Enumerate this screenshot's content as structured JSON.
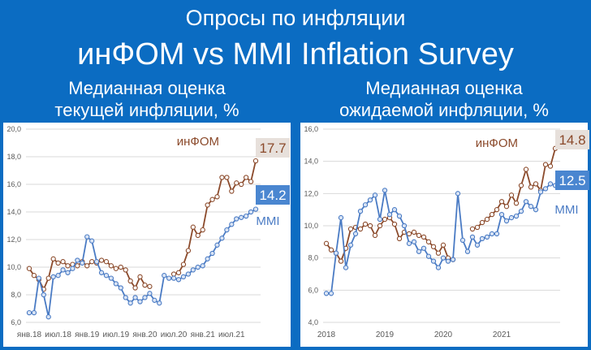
{
  "header": {
    "title1": "Опросы по инфляции",
    "title2": "инФОМ vs MMI Inflation Survey"
  },
  "colors": {
    "background": "#0b6cc2",
    "infom": "#8b4a2b",
    "mmi": "#4a7bc4",
    "mmi_fill": "#d9e4f5",
    "infom_fill": "#ffffff",
    "infom_badge": "#e7e0db",
    "mmi_badge": "#4a86d0"
  },
  "panels": {
    "left": {
      "title_line1": "Медианная оценка",
      "title_line2": "текущей инфляции, %"
    },
    "right": {
      "title_line1": "Медианная оценка",
      "title_line2": "ожидаемой инфляции, %"
    }
  },
  "chart_data": [
    {
      "type": "line",
      "title": "Медианная оценка текущей инфляции, %",
      "ylim": [
        6.0,
        20.0
      ],
      "yticks": [
        "6,0",
        "8,0",
        "10,0",
        "12,0",
        "14,0",
        "16,0",
        "18,0",
        "20,0"
      ],
      "xlim": [
        0,
        47
      ],
      "xticks": [
        {
          "x": 0,
          "label": "янв.18"
        },
        {
          "x": 6,
          "label": "июл.18"
        },
        {
          "x": 12,
          "label": "янв.19"
        },
        {
          "x": 18,
          "label": "июл.19"
        },
        {
          "x": 24,
          "label": "янв.20"
        },
        {
          "x": 30,
          "label": "июл.20"
        },
        {
          "x": 36,
          "label": "янв.21"
        },
        {
          "x": 42,
          "label": "июл.21"
        }
      ],
      "series": [
        {
          "name": "инФОМ",
          "last_label": "17.7",
          "segments": [
            {
              "x": [
                0,
                1,
                2,
                3,
                4,
                5,
                6,
                7,
                8,
                9,
                10,
                11,
                12,
                13,
                14,
                15,
                16,
                17,
                18,
                19,
                20,
                21,
                22,
                23,
                24,
                25
              ],
              "values": [
                9.9,
                9.4,
                9.1,
                8.4,
                9.2,
                10.6,
                10.3,
                10.4,
                10.1,
                10.2,
                10.1,
                10.4,
                10.1,
                10.4,
                10.3,
                10.5,
                10.4,
                10.1,
                9.9,
                10.0,
                9.8,
                9.0,
                8.5,
                9.3,
                8.7,
                8.6
              ]
            },
            {
              "x": [
                30,
                31,
                32,
                33,
                34,
                35,
                36,
                37,
                38,
                39,
                40,
                41,
                42,
                43,
                44,
                45,
                46,
                47
              ],
              "values": [
                9.5,
                9.6,
                10.2,
                11.2,
                12.9,
                12.3,
                12.7,
                14.5,
                14.9,
                15.1,
                16.5,
                16.5,
                15.5,
                16.1,
                16.0,
                16.5,
                16.2,
                17.7
              ]
            }
          ]
        },
        {
          "name": "MMI",
          "last_label": "14.2",
          "segments": [
            {
              "x": [
                0,
                1,
                2,
                3,
                4,
                5,
                6,
                7,
                8,
                9,
                10,
                11,
                12,
                13,
                14,
                15,
                16,
                17,
                18,
                19,
                20,
                21,
                22,
                23,
                24,
                25,
                26,
                27,
                28,
                29,
                30,
                31,
                32,
                33,
                34,
                35,
                36,
                37,
                38,
                39,
                40,
                41,
                42,
                43,
                44,
                45,
                46,
                47
              ],
              "values": [
                6.7,
                6.7,
                9.2,
                8.0,
                6.4,
                9.3,
                9.4,
                9.8,
                9.6,
                9.9,
                10.5,
                10.3,
                12.2,
                11.9,
                10.4,
                9.6,
                9.4,
                9.2,
                8.8,
                8.5,
                7.8,
                7.4,
                7.8,
                7.5,
                7.8,
                8.1,
                7.6,
                7.4,
                9.4,
                9.2,
                9.2,
                9.1,
                9.3,
                9.5,
                9.8,
                10.0,
                10.1,
                10.6,
                11.0,
                11.6,
                12.1,
                12.7,
                13.1,
                13.5,
                13.6,
                13.7,
                14.0,
                14.2
              ]
            }
          ]
        }
      ]
    },
    {
      "type": "line",
      "title": "Медианная оценка ожидаемой инфляции, %",
      "ylim": [
        4.0,
        16.0
      ],
      "yticks": [
        "4,0",
        "6,0",
        "8,0",
        "10,0",
        "12,0",
        "14,0",
        "16,0"
      ],
      "xlim": [
        0,
        47
      ],
      "xticks": [
        {
          "x": 0,
          "label": "2018"
        },
        {
          "x": 12,
          "label": "2019"
        },
        {
          "x": 24,
          "label": "2020"
        },
        {
          "x": 36,
          "label": "2021"
        }
      ],
      "series": [
        {
          "name": "инФОМ",
          "last_label": "14.8",
          "segments": [
            {
              "x": [
                0,
                1,
                2,
                3,
                4,
                5,
                6,
                7,
                8,
                9,
                10,
                11,
                12,
                13,
                14,
                15,
                16,
                17,
                18,
                19,
                20,
                21,
                22,
                23,
                24,
                25,
                26
              ],
              "values": [
                8.9,
                8.5,
                8.3,
                7.8,
                8.6,
                9.8,
                9.9,
                9.8,
                10.1,
                10.0,
                9.4,
                10.0,
                10.4,
                10.5,
                10.1,
                9.2,
                9.6,
                9.5,
                9.6,
                9.4,
                9.3,
                9.0,
                8.7,
                8.3,
                8.8,
                8.0,
                7.9
              ]
            },
            {
              "x": [
                30,
                31,
                32,
                33,
                34,
                35,
                36,
                37,
                38,
                39,
                40,
                41,
                42,
                43,
                44,
                45,
                46,
                47
              ],
              "values": [
                9.8,
                9.9,
                10.2,
                10.4,
                10.7,
                11.0,
                11.5,
                11.2,
                11.9,
                11.4,
                12.5,
                13.5,
                12.4,
                12.6,
                12.2,
                13.8,
                13.7,
                14.8
              ]
            }
          ]
        },
        {
          "name": "MMI",
          "last_label": "12.5",
          "segments": [
            {
              "x": [
                0,
                1,
                2,
                3,
                4,
                5,
                6,
                7,
                8,
                9,
                10,
                11,
                12,
                13,
                14,
                15,
                16,
                17,
                18,
                19,
                20,
                21,
                22,
                23,
                24,
                25,
                26,
                27,
                28,
                29,
                30,
                31,
                32,
                33,
                34,
                35,
                36,
                37,
                38,
                39,
                40,
                41,
                42,
                43,
                44,
                45,
                46,
                47
              ],
              "values": [
                5.8,
                5.8,
                8.3,
                10.5,
                7.4,
                8.8,
                9.5,
                10.9,
                11.3,
                11.6,
                11.9,
                10.4,
                12.2,
                10.7,
                11.0,
                10.6,
                10.0,
                8.9,
                9.0,
                8.4,
                8.6,
                8.1,
                7.8,
                7.4,
                8.0,
                7.8,
                7.9,
                12.0,
                9.1,
                8.4,
                9.3,
                8.8,
                9.2,
                9.3,
                9.5,
                9.5,
                10.7,
                10.3,
                10.5,
                10.6,
                10.9,
                11.5,
                11.2,
                11.0,
                12.1,
                12.3,
                12.6,
                12.5
              ]
            }
          ]
        }
      ]
    }
  ]
}
